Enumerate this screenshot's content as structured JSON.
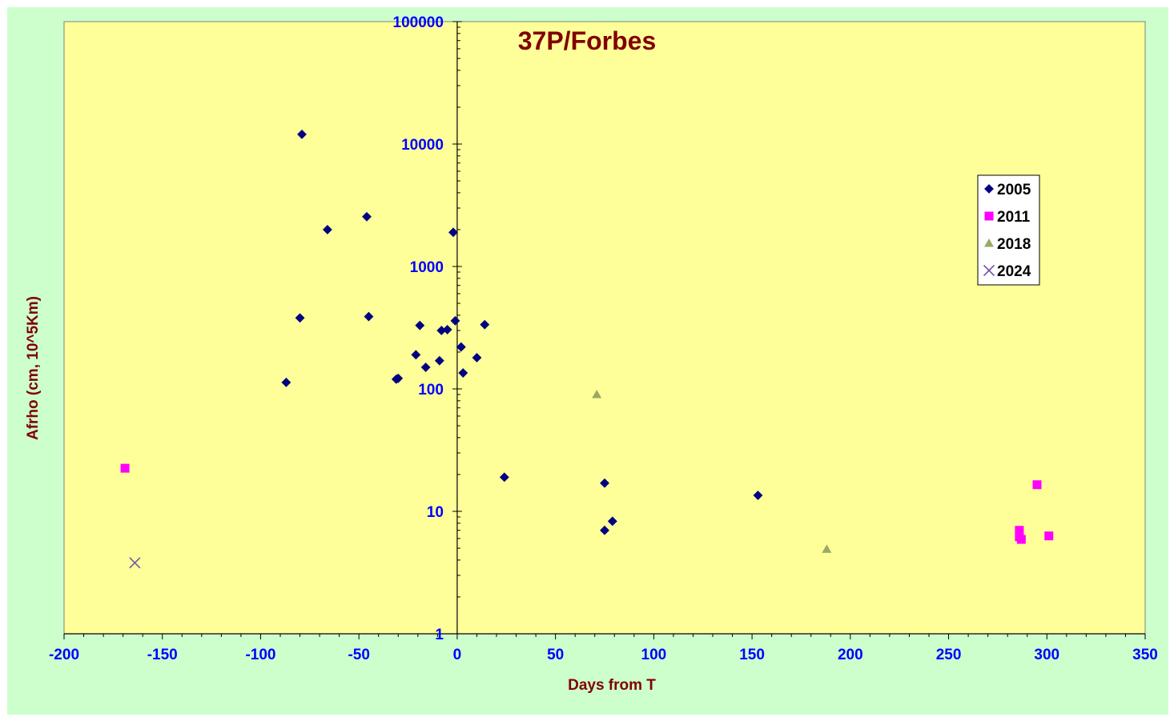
{
  "colors": {
    "outer_background": "#ccffcc",
    "plot_background": "#ffff99",
    "tick_label": "#0000ff",
    "title": "#800000",
    "axis_title": "#800000",
    "axis_line": "#000000"
  },
  "chart_data": {
    "type": "scatter",
    "title": "37P/Forbes",
    "xlabel": "Days from  T",
    "ylabel": "Afrho (cm, 10^5Km)",
    "xlim": [
      -200,
      350
    ],
    "ylim": [
      1,
      100000
    ],
    "y_scale": "log",
    "grid": false,
    "legend_position": "right",
    "x_ticks": [
      "-200",
      "-150",
      "-100",
      "-50",
      "0",
      "50",
      "100",
      "150",
      "200",
      "250",
      "300",
      "350"
    ],
    "y_ticks": [
      "1",
      "10",
      "100",
      "1000",
      "10000",
      "100000"
    ],
    "series": [
      {
        "name": "2005",
        "marker": "diamond",
        "color": "#000080",
        "points": [
          [
            -79,
            12000
          ],
          [
            -66,
            2000
          ],
          [
            -46,
            2550
          ],
          [
            -2,
            1900
          ],
          [
            -80,
            380
          ],
          [
            -45,
            390
          ],
          [
            -1,
            360
          ],
          [
            14,
            335
          ],
          [
            -19,
            330
          ],
          [
            -8,
            300
          ],
          [
            -5,
            305
          ],
          [
            2,
            220
          ],
          [
            10,
            180
          ],
          [
            -21,
            190
          ],
          [
            -9,
            170
          ],
          [
            -16,
            150
          ],
          [
            3,
            135
          ],
          [
            -31,
            120
          ],
          [
            -30,
            122
          ],
          [
            -87,
            113
          ],
          [
            24,
            19
          ],
          [
            75,
            17
          ],
          [
            153,
            13.5
          ],
          [
            79,
            8.3
          ],
          [
            75,
            7.0
          ]
        ]
      },
      {
        "name": "2011",
        "marker": "square",
        "color": "#ff00ff",
        "points": [
          [
            -169,
            22.5
          ],
          [
            295,
            16.5
          ],
          [
            286,
            7.0
          ],
          [
            286,
            6.2
          ],
          [
            287,
            5.9
          ],
          [
            301,
            6.3
          ]
        ]
      },
      {
        "name": "2018",
        "marker": "triangle",
        "color": "#99aa66",
        "points": [
          [
            71,
            90
          ],
          [
            188,
            4.9
          ]
        ]
      },
      {
        "name": "2024",
        "marker": "x",
        "color": "#7755aa",
        "points": [
          [
            -164,
            3.8
          ]
        ]
      }
    ]
  }
}
